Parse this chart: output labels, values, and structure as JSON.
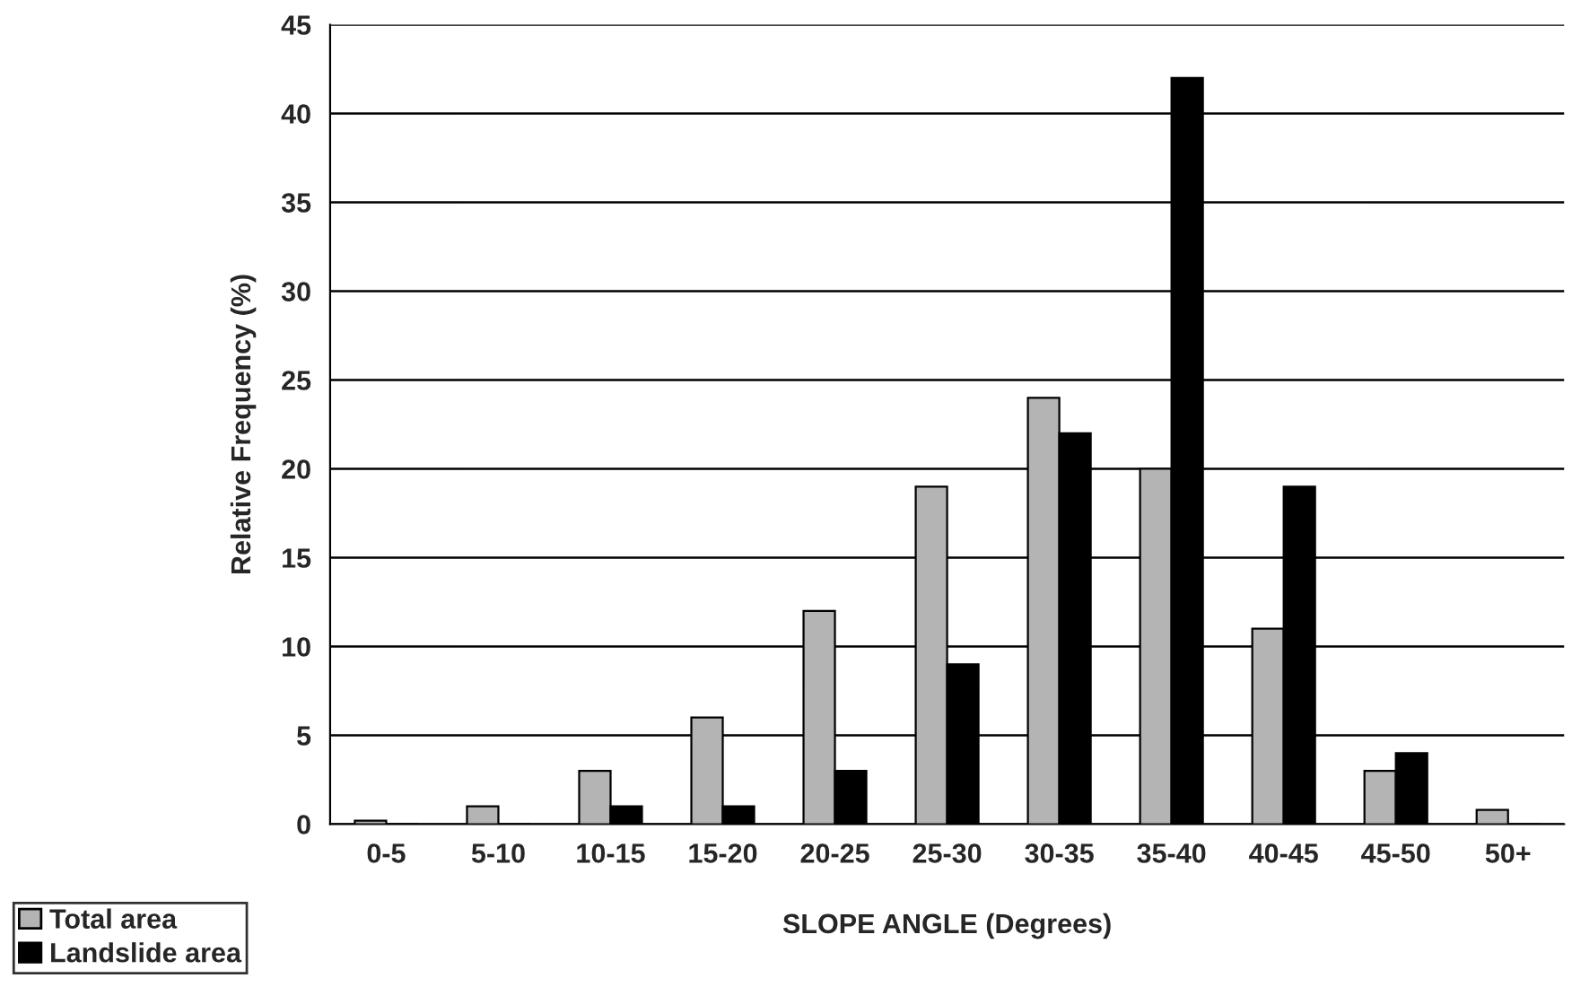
{
  "chart_data": {
    "type": "bar",
    "xlabel": "SLOPE ANGLE (Degrees)",
    "ylabel": "Relative Frequency (%)",
    "categories": [
      "0-5",
      "5-10",
      "10-15",
      "15-20",
      "20-25",
      "25-30",
      "30-35",
      "35-40",
      "40-45",
      "45-50",
      "50+"
    ],
    "series": [
      {
        "name": "Total area",
        "color": "#b4b4b4",
        "values": [
          0.2,
          1,
          3,
          6,
          12,
          19,
          24,
          20,
          11,
          3,
          0.8
        ]
      },
      {
        "name": "Landslide area",
        "color": "#000000",
        "values": [
          0,
          0,
          1,
          1,
          3,
          9,
          22,
          42,
          19,
          4,
          0
        ]
      }
    ],
    "ylim": [
      0,
      45
    ],
    "yticks": [
      0,
      5,
      10,
      15,
      20,
      25,
      30,
      35,
      40,
      45
    ],
    "grid": "y",
    "legend": "bottom left"
  }
}
